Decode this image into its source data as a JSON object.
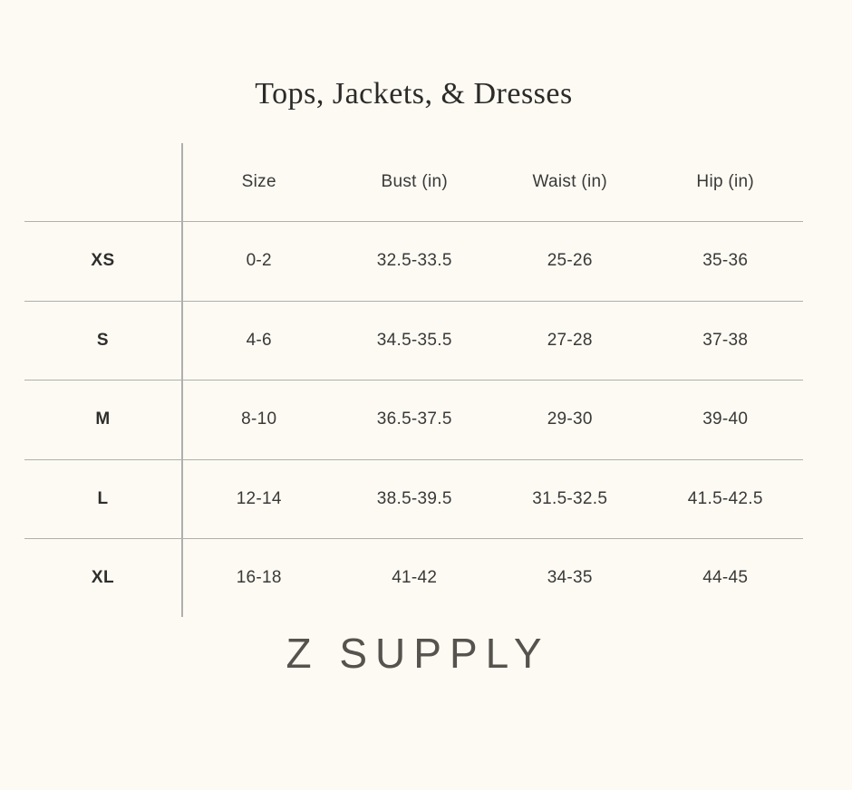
{
  "title": "Tops, Jackets, & Dresses",
  "brand": "Z SUPPLY",
  "colors": {
    "background": "#FCFAF3",
    "rule_line": "#B0AFAB",
    "body_text": "#3A3937",
    "title_text": "#2D2B28",
    "brand_text": "#56534E"
  },
  "table": {
    "columns": [
      "Size",
      "Bust (in)",
      "Waist (in)",
      "Hip (in)"
    ],
    "rows": [
      [
        "XS",
        "0-2",
        "32.5-33.5",
        "25-26",
        "35-36"
      ],
      [
        "S",
        "4-6",
        "34.5-35.5",
        "27-28",
        "37-38"
      ],
      [
        "M",
        "8-10",
        "36.5-37.5",
        "29-30",
        "39-40"
      ],
      [
        "L",
        "12-14",
        "38.5-39.5",
        "31.5-32.5",
        "41.5-42.5"
      ],
      [
        "XL",
        "16-18",
        "41-42",
        "34-35",
        "44-45"
      ]
    ]
  }
}
